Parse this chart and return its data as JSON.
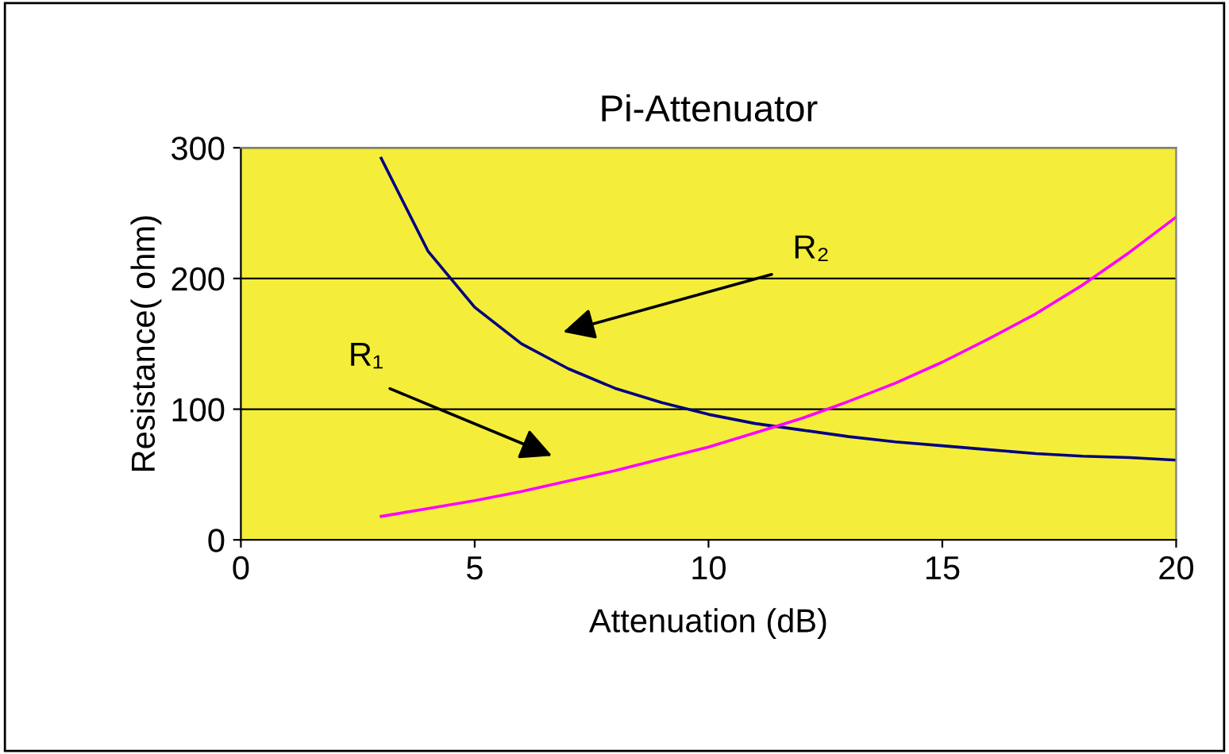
{
  "chart_data": {
    "type": "line",
    "title": "Pi-Attenuator",
    "xlabel": "Attenuation (dB)",
    "ylabel": "Resistance( ohm)",
    "x": [
      3,
      4,
      5,
      6,
      7,
      8,
      9,
      10,
      11,
      12,
      13,
      14,
      15,
      16,
      17,
      18,
      19,
      20
    ],
    "series": [
      {
        "color": "#000080",
        "values": [
          292,
          221,
          178,
          150,
          131,
          116,
          105,
          96,
          89,
          84,
          79,
          75,
          72,
          69,
          66,
          64,
          63,
          61
        ]
      },
      {
        "color": "#ff00ff",
        "values": [
          18,
          24,
          30,
          37,
          45,
          53,
          62,
          71,
          82,
          93,
          106,
          120,
          136,
          154,
          173,
          195,
          220,
          247
        ]
      }
    ],
    "annotations": [
      "R₁",
      "R₂"
    ],
    "xlim": [
      0,
      20
    ],
    "ylim": [
      0,
      300
    ],
    "xticks": [
      0,
      5,
      10,
      15,
      20
    ],
    "yticks": [
      0,
      100,
      200,
      300
    ],
    "grid": "y",
    "legend": false,
    "marker": "none",
    "line_style": "solid"
  }
}
